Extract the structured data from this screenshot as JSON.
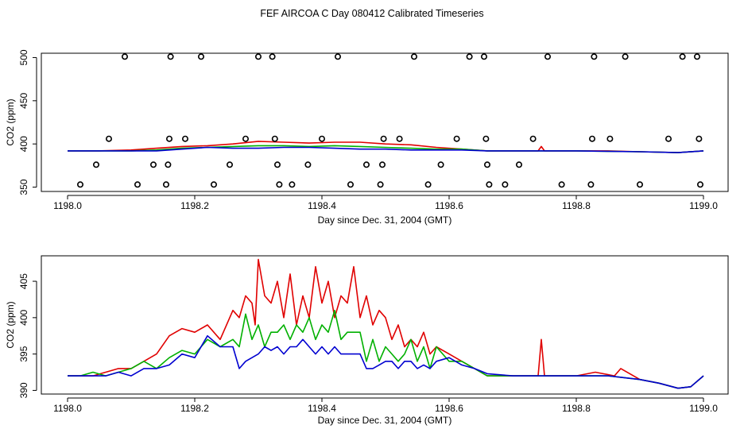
{
  "title": "FEF AIRCOA C  Day 080412  Calibrated Timeseries",
  "colors": {
    "red": "#e00000",
    "green": "#00b000",
    "blue": "#0000d0"
  },
  "chart_data": [
    {
      "type": "line",
      "title": "FEF AIRCOA C  Day 080412  Calibrated Timeseries",
      "xlabel": "Day since Dec. 31, 2004 (GMT)",
      "ylabel": "CO2 (ppm)",
      "xlim": [
        1198.0,
        1199.0
      ],
      "ylim": [
        345,
        505
      ],
      "xticks": [
        1198.0,
        1198.2,
        1198.4,
        1198.6,
        1198.8,
        1199.0
      ],
      "xtick_labels": [
        "1198.0",
        "1198.2",
        "1198.4",
        "1198.6",
        "1198.8",
        "1199.0"
      ],
      "yticks": [
        350,
        400,
        450,
        500
      ],
      "ytick_labels": [
        "350",
        "400",
        "450",
        "500"
      ],
      "series": [
        {
          "name": "red",
          "color": "#e00000",
          "x": [
            1198.0,
            1198.05,
            1198.1,
            1198.14,
            1198.18,
            1198.22,
            1198.26,
            1198.3,
            1198.34,
            1198.38,
            1198.42,
            1198.46,
            1198.5,
            1198.54,
            1198.58,
            1198.62,
            1198.66,
            1198.7,
            1198.74,
            1198.745,
            1198.75,
            1198.8,
            1198.85,
            1198.9,
            1198.96,
            1199.0
          ],
          "values": [
            392,
            392,
            393,
            395,
            397,
            398,
            400,
            403,
            402,
            401,
            402,
            402,
            400,
            399,
            396,
            394,
            392,
            392,
            392,
            397,
            392,
            392,
            392,
            391,
            390,
            392
          ]
        },
        {
          "name": "green",
          "color": "#00b000",
          "x": [
            1198.0,
            1198.05,
            1198.1,
            1198.14,
            1198.18,
            1198.22,
            1198.26,
            1198.3,
            1198.34,
            1198.38,
            1198.42,
            1198.46,
            1198.5,
            1198.54,
            1198.58,
            1198.62,
            1198.66,
            1198.7,
            1198.8,
            1198.9,
            1198.96,
            1199.0
          ],
          "values": [
            392,
            392,
            392,
            393,
            395,
            396,
            397,
            398,
            398,
            397,
            398,
            397,
            396,
            395,
            394,
            394,
            392,
            392,
            392,
            391,
            390,
            392
          ]
        },
        {
          "name": "blue",
          "color": "#0000d0",
          "x": [
            1198.0,
            1198.05,
            1198.1,
            1198.14,
            1198.18,
            1198.22,
            1198.26,
            1198.3,
            1198.34,
            1198.38,
            1198.42,
            1198.46,
            1198.5,
            1198.54,
            1198.58,
            1198.62,
            1198.66,
            1198.7,
            1198.8,
            1198.9,
            1198.96,
            1199.0
          ],
          "values": [
            392,
            392,
            392,
            392,
            394,
            396,
            395,
            395,
            396,
            396,
            395,
            394,
            394,
            393,
            393,
            393,
            392,
            392,
            392,
            391,
            390,
            392
          ]
        }
      ],
      "markers": {
        "x": [
          1198.02,
          1198.045,
          1198.065,
          1198.09,
          1198.11,
          1198.135,
          1198.155,
          1198.158,
          1198.16,
          1198.162,
          1198.185,
          1198.21,
          1198.23,
          1198.255,
          1198.28,
          1198.3,
          1198.322,
          1198.326,
          1198.33,
          1198.333,
          1198.353,
          1198.378,
          1198.4,
          1198.425,
          1198.445,
          1198.47,
          1198.492,
          1198.495,
          1198.497,
          1198.522,
          1198.545,
          1198.567,
          1198.587,
          1198.612,
          1198.632,
          1198.655,
          1198.658,
          1198.66,
          1198.663,
          1198.688,
          1198.71,
          1198.732,
          1198.755,
          1198.777,
          1198.823,
          1198.825,
          1198.828,
          1198.853,
          1198.877,
          1198.9,
          1198.945,
          1198.967,
          1198.99,
          1198.993,
          1198.995
        ],
        "values": [
          353,
          376,
          406,
          501,
          353,
          376,
          353,
          376,
          406,
          501,
          406,
          501,
          353,
          376,
          406,
          501,
          501,
          406,
          376,
          353,
          353,
          376,
          406,
          501,
          353,
          376,
          353,
          376,
          406,
          406,
          501,
          353,
          376,
          406,
          501,
          501,
          406,
          376,
          353,
          353,
          376,
          406,
          501,
          353,
          353,
          406,
          501,
          406,
          501,
          353,
          406,
          501,
          501,
          406,
          353
        ]
      }
    },
    {
      "type": "line",
      "title": "",
      "xlabel": "Day since Dec. 31, 2004 (GMT)",
      "ylabel": "CO2 (ppm)",
      "xlim": [
        1198.0,
        1199.0
      ],
      "ylim": [
        389.5,
        408.5
      ],
      "xticks": [
        1198.0,
        1198.2,
        1198.4,
        1198.6,
        1198.8,
        1199.0
      ],
      "xtick_labels": [
        "1198.0",
        "1198.2",
        "1198.4",
        "1198.6",
        "1198.8",
        "1199.0"
      ],
      "yticks": [
        390,
        395,
        400,
        405
      ],
      "ytick_labels": [
        "390",
        "395",
        "400",
        "405"
      ],
      "series": [
        {
          "name": "red",
          "color": "#e00000",
          "x": [
            1198.0,
            1198.02,
            1198.04,
            1198.06,
            1198.08,
            1198.1,
            1198.12,
            1198.14,
            1198.16,
            1198.18,
            1198.2,
            1198.22,
            1198.24,
            1198.26,
            1198.27,
            1198.28,
            1198.29,
            1198.295,
            1198.3,
            1198.31,
            1198.32,
            1198.33,
            1198.34,
            1198.35,
            1198.36,
            1198.37,
            1198.38,
            1198.39,
            1198.4,
            1198.41,
            1198.42,
            1198.43,
            1198.44,
            1198.45,
            1198.46,
            1198.47,
            1198.48,
            1198.49,
            1198.5,
            1198.51,
            1198.52,
            1198.53,
            1198.54,
            1198.55,
            1198.56,
            1198.57,
            1198.58,
            1198.6,
            1198.62,
            1198.64,
            1198.66,
            1198.7,
            1198.73,
            1198.74,
            1198.745,
            1198.75,
            1198.76,
            1198.78,
            1198.8,
            1198.83,
            1198.86,
            1198.87,
            1198.9,
            1198.93,
            1198.96,
            1198.98,
            1199.0
          ],
          "values": [
            392,
            392,
            392,
            392.5,
            393,
            393,
            394,
            395,
            397.5,
            398.5,
            398,
            399,
            397,
            401,
            400,
            403,
            402,
            399,
            408,
            403,
            402,
            405,
            400,
            406,
            399,
            403,
            400,
            407,
            402,
            405,
            400,
            403,
            402,
            407,
            400,
            403,
            399,
            401,
            400,
            397,
            399,
            396,
            397,
            396,
            398,
            395,
            396,
            395,
            394,
            393,
            392,
            392,
            392,
            392,
            397,
            392,
            392,
            392,
            392,
            392.5,
            392,
            393,
            391.5,
            391,
            390.3,
            390.5,
            392
          ]
        },
        {
          "name": "green",
          "color": "#00b000",
          "x": [
            1198.0,
            1198.02,
            1198.04,
            1198.06,
            1198.08,
            1198.1,
            1198.12,
            1198.14,
            1198.16,
            1198.18,
            1198.2,
            1198.22,
            1198.24,
            1198.26,
            1198.27,
            1198.28,
            1198.29,
            1198.3,
            1198.31,
            1198.32,
            1198.33,
            1198.34,
            1198.35,
            1198.36,
            1198.37,
            1198.38,
            1198.39,
            1198.4,
            1198.41,
            1198.42,
            1198.43,
            1198.44,
            1198.45,
            1198.46,
            1198.47,
            1198.48,
            1198.49,
            1198.5,
            1198.51,
            1198.52,
            1198.53,
            1198.54,
            1198.55,
            1198.56,
            1198.57,
            1198.58,
            1198.6,
            1198.62,
            1198.64,
            1198.66,
            1198.7,
            1198.8,
            1198.85,
            1198.9,
            1198.93,
            1198.96,
            1198.98,
            1199.0
          ],
          "values": [
            392,
            392,
            392.5,
            392,
            392.5,
            393,
            394,
            393,
            394.5,
            395.5,
            395,
            397,
            396,
            397,
            396,
            400.5,
            397,
            399,
            396,
            398,
            398,
            399,
            397,
            399,
            398,
            400,
            397,
            399,
            398,
            401,
            397,
            398,
            398,
            398,
            394,
            397,
            394,
            396,
            395,
            394,
            395,
            397,
            394,
            396,
            393,
            396,
            394,
            394,
            393,
            392,
            392,
            392,
            392,
            391.5,
            391,
            390.3,
            390.5,
            392
          ]
        },
        {
          "name": "blue",
          "color": "#0000d0",
          "x": [
            1198.0,
            1198.02,
            1198.04,
            1198.06,
            1198.08,
            1198.1,
            1198.12,
            1198.14,
            1198.16,
            1198.18,
            1198.2,
            1198.22,
            1198.24,
            1198.26,
            1198.27,
            1198.28,
            1198.29,
            1198.3,
            1198.31,
            1198.32,
            1198.33,
            1198.34,
            1198.35,
            1198.36,
            1198.37,
            1198.38,
            1198.39,
            1198.4,
            1198.41,
            1198.42,
            1198.43,
            1198.44,
            1198.45,
            1198.46,
            1198.47,
            1198.48,
            1198.49,
            1198.5,
            1198.51,
            1198.52,
            1198.53,
            1198.54,
            1198.55,
            1198.56,
            1198.57,
            1198.58,
            1198.6,
            1198.62,
            1198.64,
            1198.66,
            1198.7,
            1198.8,
            1198.85,
            1198.9,
            1198.93,
            1198.96,
            1198.98,
            1199.0
          ],
          "values": [
            392,
            392,
            392,
            392,
            392.5,
            392,
            393,
            393,
            393.5,
            395,
            394.5,
            397.5,
            396,
            396,
            393,
            394,
            394.5,
            395,
            396,
            395.5,
            396,
            395,
            396,
            396,
            397,
            396,
            395,
            396,
            395,
            396,
            395,
            395,
            395,
            395,
            393,
            393,
            393.5,
            394,
            394,
            393,
            394,
            394,
            393,
            393.5,
            393,
            394,
            394.5,
            393.5,
            393,
            392.3,
            392,
            392,
            392,
            391.5,
            391,
            390.3,
            390.5,
            392
          ]
        }
      ]
    }
  ]
}
